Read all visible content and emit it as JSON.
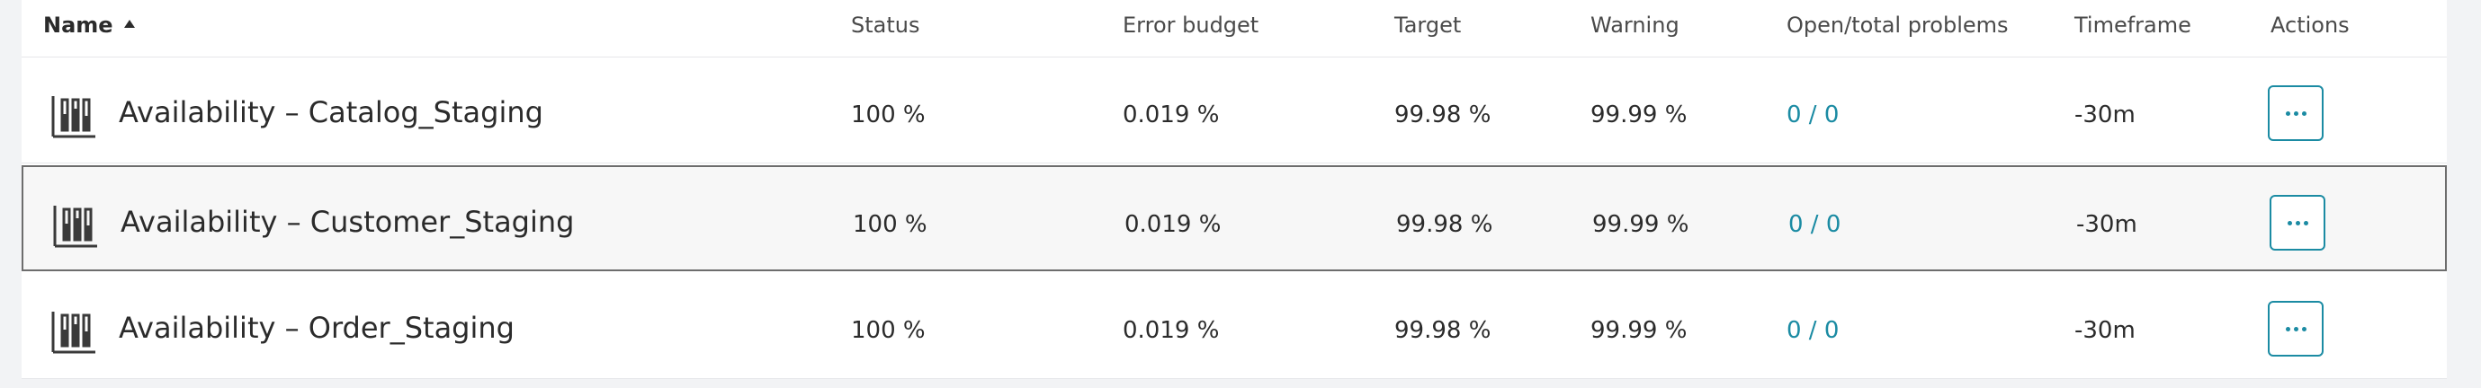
{
  "columns": {
    "name": "Name",
    "status": "Status",
    "error_budget": "Error budget",
    "target": "Target",
    "warning": "Warning",
    "problems": "Open/total problems",
    "timeframe": "Timeframe",
    "actions": "Actions"
  },
  "rows": [
    {
      "name": "Availability – Catalog_Staging",
      "status": "100 %",
      "error_budget": "0.019 %",
      "target": "99.98 %",
      "warning": "99.99 %",
      "problems": "0 / 0",
      "timeframe": "-30m",
      "selected": false
    },
    {
      "name": "Availability – Customer_Staging",
      "status": "100 %",
      "error_budget": "0.019 %",
      "target": "99.98 %",
      "warning": "99.99 %",
      "problems": "0 / 0",
      "timeframe": "-30m",
      "selected": true
    },
    {
      "name": "Availability – Order_Staging",
      "status": "100 %",
      "error_budget": "0.019 %",
      "target": "99.98 %",
      "warning": "99.99 %",
      "problems": "0 / 0",
      "timeframe": "-30m",
      "selected": false
    }
  ],
  "icons": {
    "row_icon": "slo-bar-chart-icon",
    "actions_icon": "more-horizontal-icon",
    "sort_icon": "sort-ascending-icon"
  },
  "colors": {
    "accent": "#1b8ba3",
    "text": "#2b2b2b",
    "border": "#e6e7ea",
    "selected_border": "#6d6d6d"
  }
}
